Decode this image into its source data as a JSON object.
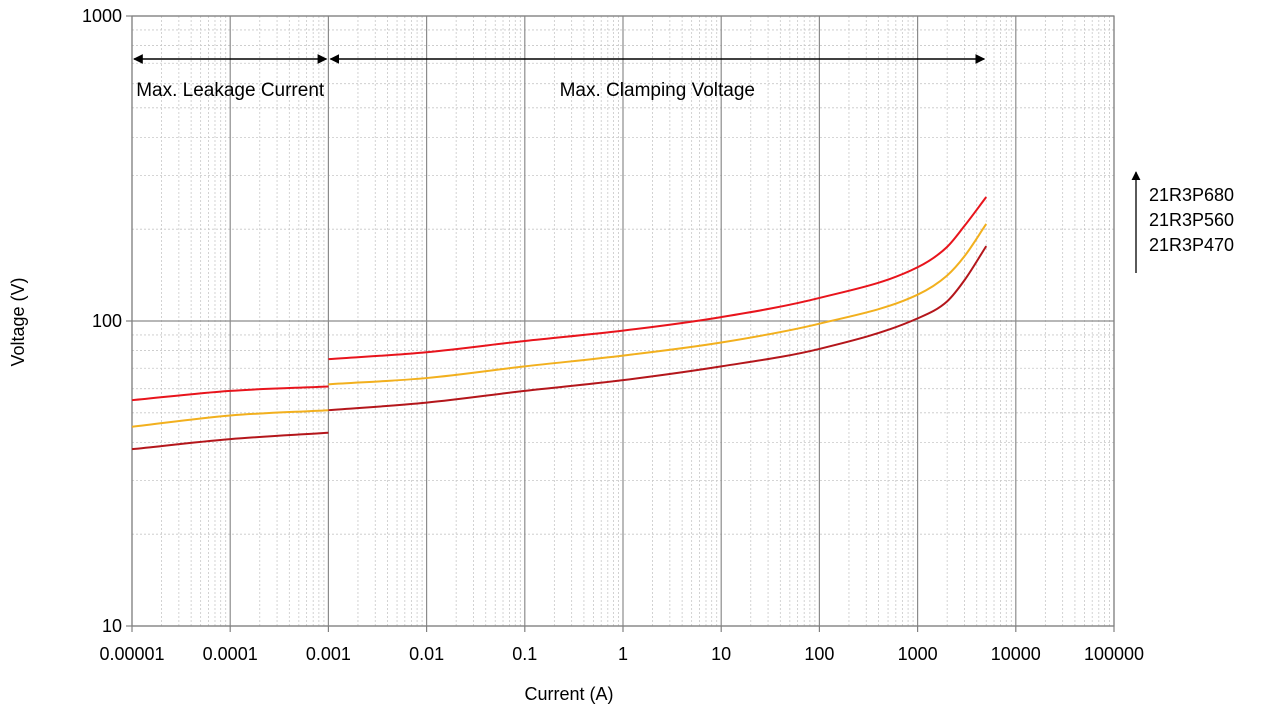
{
  "chart_data": {
    "type": "line",
    "xlabel": "Current (A)",
    "ylabel": "Voltage (V)",
    "x_scale": "log",
    "y_scale": "log",
    "xlim": [
      1e-05,
      100000
    ],
    "ylim": [
      10,
      1000
    ],
    "grid": true,
    "x_tick_labels": [
      "0.00001",
      "0.0001",
      "0.001",
      "0.01",
      "0.1",
      "1",
      "10",
      "100",
      "1000",
      "10000",
      "100000"
    ],
    "y_tick_labels": [
      "10",
      "100",
      "1000"
    ],
    "annotations": [
      {
        "text": "Max. Leakage Current",
        "x_from": 1e-05,
        "x_to": 0.001
      },
      {
        "text": "Max. Clamping Voltage",
        "x_from": 0.001,
        "x_to": 5000
      }
    ],
    "legend": {
      "position": "right",
      "entries": [
        "21R3P680",
        "21R3P560",
        "21R3P470"
      ]
    },
    "series": [
      {
        "name": "21R3P680",
        "color": "#e8141c",
        "leakage": {
          "x": [
            1e-05,
            0.0001,
            0.001
          ],
          "y": [
            55,
            59,
            61
          ]
        },
        "clamping": {
          "x": [
            0.001,
            0.01,
            0.1,
            1,
            10,
            100,
            1000,
            2000,
            3000,
            5000
          ],
          "y": [
            75,
            79,
            86,
            93,
            103,
            119,
            150,
            175,
            205,
            255
          ]
        }
      },
      {
        "name": "21R3P560",
        "color": "#f2b01e",
        "leakage": {
          "x": [
            1e-05,
            0.0001,
            0.001
          ],
          "y": [
            45,
            49,
            51
          ]
        },
        "clamping": {
          "x": [
            0.001,
            0.01,
            0.1,
            1,
            10,
            100,
            1000,
            2000,
            3000,
            5000
          ],
          "y": [
            62,
            65,
            71,
            77,
            85,
            98,
            122,
            141,
            163,
            208
          ]
        }
      },
      {
        "name": "21R3P470",
        "color": "#b4161b",
        "leakage": {
          "x": [
            1e-05,
            0.0001,
            0.001
          ],
          "y": [
            38,
            41,
            43
          ]
        },
        "clamping": {
          "x": [
            0.001,
            0.01,
            0.1,
            1,
            10,
            100,
            1000,
            2000,
            3000,
            5000
          ],
          "y": [
            51,
            54,
            59,
            64,
            71,
            81,
            102,
            116,
            136,
            176
          ]
        }
      }
    ]
  }
}
